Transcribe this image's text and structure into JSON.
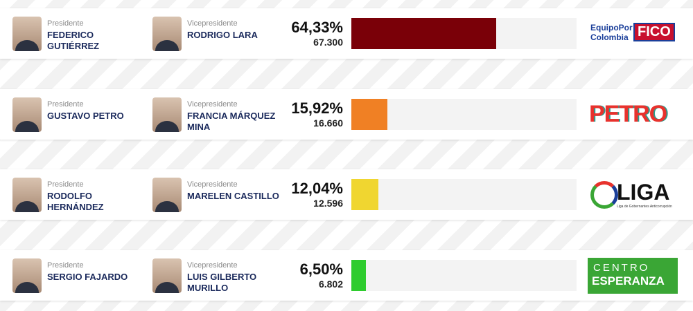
{
  "bar_scale": [
    0,
    100
  ],
  "candidates": [
    {
      "president_role": "Presidente",
      "president": "FEDERICO GUTIÉRREZ",
      "vice_role": "Vicepresidente",
      "vice": "RODRIGO LARA",
      "percent": {
        "value": 64.33,
        "label": "64,33%"
      },
      "votes": {
        "value": 67300,
        "label": "67.300"
      },
      "color": "#7a0008",
      "logo": [
        "EquipoPor",
        "Colombia",
        "FICO"
      ]
    },
    {
      "president_role": "Presidente",
      "president": "GUSTAVO PETRO",
      "vice_role": "Vicepresidente",
      "vice": "FRANCIA MÁRQUEZ MINA",
      "percent": {
        "value": 15.92,
        "label": "15,92%"
      },
      "votes": {
        "value": 16660,
        "label": "16.660"
      },
      "color": "#f08024",
      "logo": [
        "PETRO"
      ]
    },
    {
      "president_role": "Presidente",
      "president": "RODOLFO HERNÁNDEZ",
      "vice_role": "Vicepresidente",
      "vice": "MARELEN CASTILLO",
      "percent": {
        "value": 12.04,
        "label": "12,04%"
      },
      "votes": {
        "value": 12596,
        "label": "12.596"
      },
      "color": "#f0d630",
      "logo": [
        "LIGA",
        "Liga de Gobernantes Anticorrupción"
      ]
    },
    {
      "president_role": "Presidente",
      "president": "SERGIO FAJARDO",
      "vice_role": "Vicepresidente",
      "vice": "LUIS GILBERTO MURILLO",
      "percent": {
        "value": 6.5,
        "label": "6,50%"
      },
      "votes": {
        "value": 6802,
        "label": "6.802"
      },
      "color": "#2ecc2e",
      "logo": [
        "CENTRO",
        "ESPERANZA"
      ]
    }
  ]
}
